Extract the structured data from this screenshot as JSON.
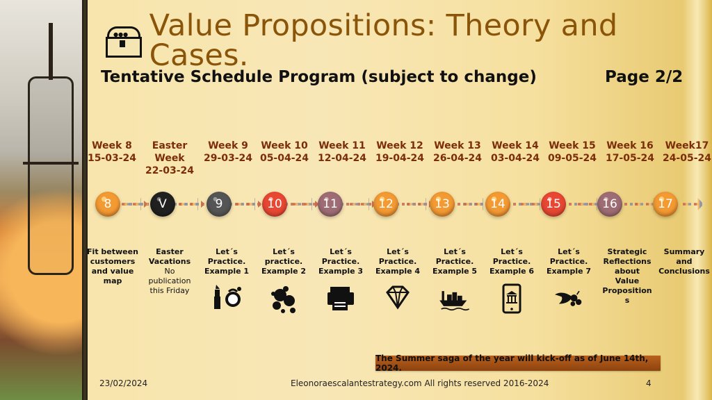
{
  "slide": {
    "title": "Value Propositions: Theory and Cases.",
    "subtitle": "Tentative Schedule Program (subject to change)",
    "page_label": "Page 2/2",
    "footer_note": "The Summer saga of the year will kick-off as of June 14th, 2024.",
    "footer_date": "23/02/2024",
    "footer_site": "Eleonoraescalantestrategy.com  All rights reserved 2016-2024",
    "slide_number": "4"
  },
  "weeks": [
    {
      "line1": "Week 8",
      "line2": "15-03-24",
      "line3": "",
      "node": "8",
      "desc": [
        "Fit between",
        "customers",
        "and value",
        "map"
      ],
      "desc_normal": []
    },
    {
      "line1": "Easter",
      "line2": "Week",
      "line3": "22-03-24",
      "node": "V",
      "desc": [
        "Easter",
        "Vacations"
      ],
      "desc_normal": [
        "No",
        "publication",
        "this Friday"
      ]
    },
    {
      "line1": "Week 9",
      "line2": "29-03-24",
      "line3": "",
      "node": "9",
      "desc": [
        "Let´s",
        "Practice.",
        "Example 1"
      ],
      "desc_normal": []
    },
    {
      "line1": "Week 10",
      "line2": "05-04-24",
      "line3": "",
      "node": "10",
      "desc": [
        "Let´s",
        "practice.",
        "Example 2"
      ],
      "desc_normal": []
    },
    {
      "line1": "Week 11",
      "line2": "12-04-24",
      "line3": "",
      "node": "11",
      "desc": [
        "Let´s",
        "Practice.",
        "Example 3"
      ],
      "desc_normal": []
    },
    {
      "line1": "Week 12",
      "line2": "19-04-24",
      "line3": "",
      "node": "12",
      "desc": [
        "Let´s",
        "Practice.",
        "Example 4"
      ],
      "desc_normal": []
    },
    {
      "line1": "Week 13",
      "line2": "26-04-24",
      "line3": "",
      "node": "13",
      "desc": [
        "Let´s",
        "Practice.",
        "Example 5"
      ],
      "desc_normal": []
    },
    {
      "line1": "Week 14",
      "line2": "03-04-24",
      "line3": "",
      "node": "14",
      "desc": [
        "Let´s",
        "Practice.",
        "Example 6"
      ],
      "desc_normal": []
    },
    {
      "line1": "Week 15",
      "line2": "09-05-24",
      "line3": "",
      "node": "15",
      "desc": [
        "Let´s",
        "Practice.",
        "Example 7"
      ],
      "desc_normal": []
    },
    {
      "line1": "Week 16",
      "line2": "17-05-24",
      "line3": "",
      "node": "16",
      "desc": [
        "Strategic",
        "Reflections",
        "about",
        "Value",
        "Proposition",
        "s"
      ],
      "desc_normal": []
    },
    {
      "line1": "Week17",
      "line2": "24-05-24",
      "line3": "",
      "node": "17",
      "desc": [
        "Summary",
        "and",
        "Conclusions"
      ],
      "desc_normal": []
    }
  ],
  "icons": {
    "example1": "lipstick-and-perfume-icon",
    "example2": "bubbles-icon",
    "example3": "printer-icon",
    "example4": "diamond-icon",
    "example5": "ship-icon",
    "example6": "mobile-bank-icon",
    "example7": "cornucopia-icon",
    "title_icon": "treasure-chest-icon"
  },
  "colors": {
    "title": "#8a5409",
    "week_text": "#7a2d08",
    "orange": "#f39a33",
    "red": "#e74733",
    "mauve": "#9e6c74",
    "black": "#111111",
    "gray": "#555555",
    "footer_banner": "#b9611d"
  }
}
